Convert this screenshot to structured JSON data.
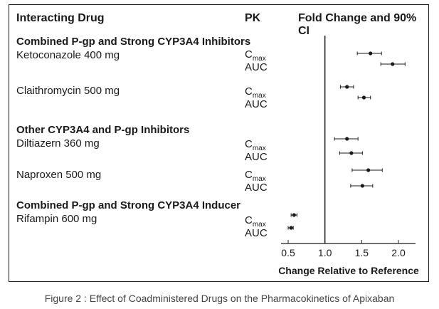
{
  "header": {
    "col_drug": "Interacting Drug",
    "col_pk": "PK",
    "col_fold": "Fold Change and 90% CI"
  },
  "groups": [
    {
      "title": "Combined P-gp and Strong CYP3A4 Inhibitors"
    },
    {
      "title": "Other CYP3A4 and P-gp Inhibitors"
    },
    {
      "title": "Combined P-gp and Strong CYP3A4 Inducer"
    }
  ],
  "drugs": [
    {
      "name": "Ketoconazole 400 mg"
    },
    {
      "name": "Claithromycin 500 mg"
    },
    {
      "name": "Diltiazern 360 mg"
    },
    {
      "name": "Naproxen 500 mg"
    },
    {
      "name": "Rifampin 600 mg"
    }
  ],
  "pk_labels": {
    "cmax_base": "C",
    "cmax_sub": "max",
    "auc": "AUC"
  },
  "caption": "Figure 2 : Effect of Coadministered Drugs on the Pharmacokinetics of Apixaban",
  "chart_data": {
    "type": "scatter",
    "title": "Fold Change and 90% CI",
    "xlabel": "Change Relative to Reference",
    "ylabel": "",
    "xlim": [
      0.45,
      2.25
    ],
    "xticks": [
      "0.5",
      "1.0",
      "1.5",
      "2.0"
    ],
    "xtick_values": [
      0.5,
      1.0,
      1.5,
      2.0
    ],
    "reference_line": 1.0,
    "grid": false,
    "rows": [
      {
        "drug": "Ketoconazole 400 mg",
        "pk": "Cmax",
        "estimate": 1.62,
        "ci_low": 1.44,
        "ci_high": 1.77
      },
      {
        "drug": "Ketoconazole 400 mg",
        "pk": "AUC",
        "estimate": 1.92,
        "ci_low": 1.76,
        "ci_high": 2.09
      },
      {
        "drug": "Claithromycin 500 mg",
        "pk": "Cmax",
        "estimate": 1.3,
        "ci_low": 1.21,
        "ci_high": 1.39
      },
      {
        "drug": "Claithromycin 500 mg",
        "pk": "AUC",
        "estimate": 1.53,
        "ci_low": 1.45,
        "ci_high": 1.62
      },
      {
        "drug": "Diltiazern 360 mg",
        "pk": "Cmax",
        "estimate": 1.3,
        "ci_low": 1.13,
        "ci_high": 1.45
      },
      {
        "drug": "Diltiazern 360 mg",
        "pk": "AUC",
        "estimate": 1.36,
        "ci_low": 1.2,
        "ci_high": 1.51
      },
      {
        "drug": "Naproxen 500 mg",
        "pk": "Cmax",
        "estimate": 1.59,
        "ci_low": 1.37,
        "ci_high": 1.78
      },
      {
        "drug": "Naproxen 500 mg",
        "pk": "AUC",
        "estimate": 1.51,
        "ci_low": 1.35,
        "ci_high": 1.65
      },
      {
        "drug": "Rifampin 600 mg",
        "pk": "Cmax",
        "estimate": 0.58,
        "ci_low": 0.54,
        "ci_high": 0.62
      },
      {
        "drug": "Rifampin 600 mg",
        "pk": "AUC",
        "estimate": 0.54,
        "ci_low": 0.5,
        "ci_high": 0.57
      }
    ]
  }
}
